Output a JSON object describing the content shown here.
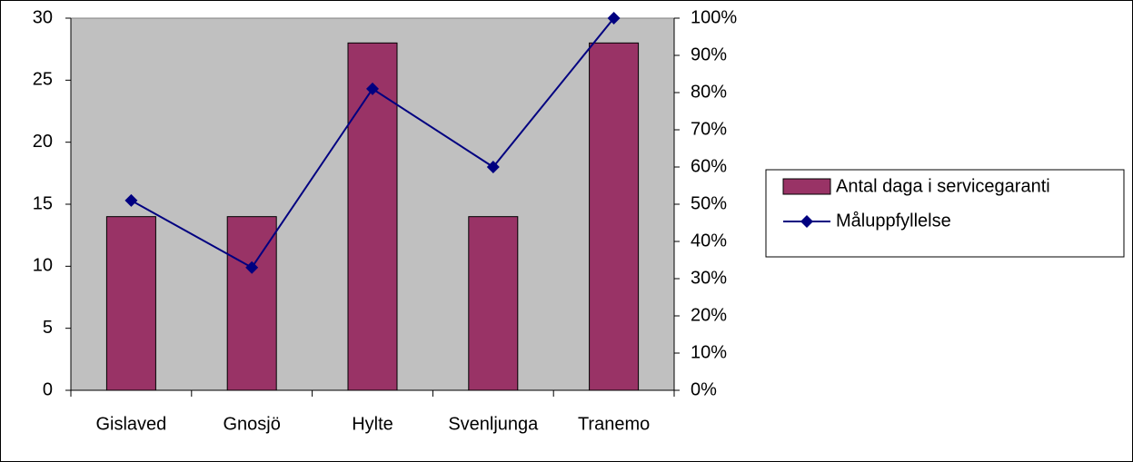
{
  "chart_data": {
    "type": "bar",
    "categories": [
      "Gislaved",
      "Gnosjö",
      "Hylte",
      "Svenljunga",
      "Tranemo"
    ],
    "series": [
      {
        "name": "Antal daga i servicegaranti",
        "type": "bar",
        "color": "#993366",
        "values": [
          14,
          14,
          28,
          14,
          28
        ]
      },
      {
        "name": "Måluppfyllelse",
        "type": "line",
        "color": "#000080",
        "axis": "y2",
        "values": [
          51,
          33,
          81,
          60,
          100
        ]
      }
    ],
    "ylim": [
      0,
      30
    ],
    "yticks": [
      0,
      5,
      10,
      15,
      20,
      25,
      30
    ],
    "y2lim": [
      0,
      100
    ],
    "y2ticks": [
      {
        "value": 0,
        "label": "0%"
      },
      {
        "value": 10,
        "label": "10%"
      },
      {
        "value": 20,
        "label": "20%"
      },
      {
        "value": 30,
        "label": "30%"
      },
      {
        "value": 40,
        "label": "40%"
      },
      {
        "value": 50,
        "label": "50%"
      },
      {
        "value": 60,
        "label": "60%"
      },
      {
        "value": 70,
        "label": "70%"
      },
      {
        "value": 80,
        "label": "80%"
      },
      {
        "value": 90,
        "label": "90%"
      },
      {
        "value": 100,
        "label": "100%"
      }
    ],
    "grid": false,
    "legend": "right",
    "plot_background": "#c0c0c0"
  }
}
